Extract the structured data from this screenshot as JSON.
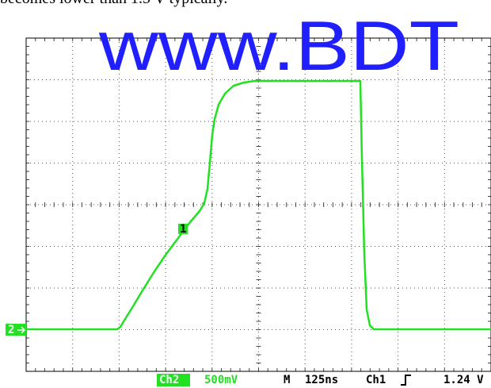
{
  "caption": "becomes lower than 1.5 V typically.",
  "watermark": "www.BDT",
  "markers": {
    "channel": "2",
    "trigger": "1"
  },
  "status": {
    "channel": "Ch2",
    "scale": "500mV",
    "mode": "M",
    "timebase": "125ns",
    "trigger_source": "Ch1",
    "trigger_level": "1.24 V"
  }
}
